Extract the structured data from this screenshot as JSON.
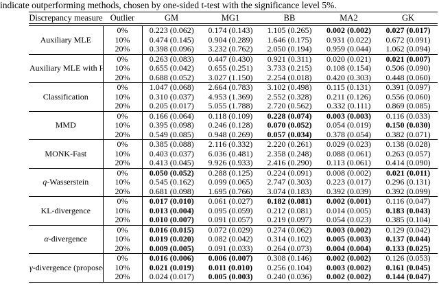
{
  "caption": "indicate outperforming methods, chosen by one-sided t-test with the significance level 5%.",
  "table": {
    "columns": [
      "Discrepancy measure",
      "Outlier",
      "GM",
      "MG1",
      "BB",
      "MA2",
      "GK"
    ],
    "groups": [
      {
        "measure_math": "",
        "measure_rest": "Auxiliary MLE",
        "rows": [
          {
            "outlier": "0%",
            "cells": [
              {
                "v": "0.223 (0.062)",
                "b": false
              },
              {
                "v": "0.174 (0.143)",
                "b": false
              },
              {
                "v": "1.105 (0.265)",
                "b": false
              },
              {
                "v": "0.002 (0.002)",
                "b": true
              },
              {
                "v": "0.027 (0.017)",
                "b": true
              }
            ]
          },
          {
            "outlier": "10%",
            "cells": [
              {
                "v": "0.474 (0.145)",
                "b": false
              },
              {
                "v": "0.904 (0.289)",
                "b": false
              },
              {
                "v": "1.646 (0.175)",
                "b": false
              },
              {
                "v": "0.931 (0.022)",
                "b": false
              },
              {
                "v": "0.672 (0.091)",
                "b": false
              }
            ]
          },
          {
            "outlier": "20%",
            "cells": [
              {
                "v": "0.398 (0.096)",
                "b": false
              },
              {
                "v": "3.232 (0.762)",
                "b": false
              },
              {
                "v": "2.050 (0.194)",
                "b": false
              },
              {
                "v": "0.959 (0.044)",
                "b": false
              },
              {
                "v": "1.062 (0.094)",
                "b": false
              }
            ]
          }
        ]
      },
      {
        "measure_math": "",
        "measure_rest": "Auxiliary MLE with Huber",
        "rows": [
          {
            "outlier": "0%",
            "cells": [
              {
                "v": "0.263 (0.083)",
                "b": false
              },
              {
                "v": "0.447 (0.430)",
                "b": false
              },
              {
                "v": "0.921 (0.311)",
                "b": false
              },
              {
                "v": "0.020 (0.021)",
                "b": false
              },
              {
                "v": "0.021 (0.007)",
                "b": true
              }
            ]
          },
          {
            "outlier": "10%",
            "cells": [
              {
                "v": "0.655 (0.042)",
                "b": false
              },
              {
                "v": "0.655 (0.251)",
                "b": false
              },
              {
                "v": "3.733 (0.215)",
                "b": false
              },
              {
                "v": "0.108 (0.154)",
                "b": false
              },
              {
                "v": "0.506 (0.090)",
                "b": false
              }
            ]
          },
          {
            "outlier": "20%",
            "cells": [
              {
                "v": "0.688 (0.052)",
                "b": false
              },
              {
                "v": "3.027 (1.150)",
                "b": false
              },
              {
                "v": "2.254 (0.018)",
                "b": false
              },
              {
                "v": "0.420 (0.303)",
                "b": false
              },
              {
                "v": "0.448 (0.060)",
                "b": false
              }
            ]
          }
        ]
      },
      {
        "measure_math": "",
        "measure_rest": "Classification",
        "rows": [
          {
            "outlier": "0%",
            "cells": [
              {
                "v": "1.047 (0.068)",
                "b": false
              },
              {
                "v": "2.664 (0.783)",
                "b": false
              },
              {
                "v": "3.102 (0.498)",
                "b": false
              },
              {
                "v": "0.115 (0.131)",
                "b": false
              },
              {
                "v": "0.391 (0.097)",
                "b": false
              }
            ]
          },
          {
            "outlier": "10%",
            "cells": [
              {
                "v": "0.310 (0.037)",
                "b": false
              },
              {
                "v": "4.953 (1.369)",
                "b": false
              },
              {
                "v": "2.552 (0.328)",
                "b": false
              },
              {
                "v": "0.211 (0.126)",
                "b": false
              },
              {
                "v": "0.556 (0.060)",
                "b": false
              }
            ]
          },
          {
            "outlier": "20%",
            "cells": [
              {
                "v": "0.205 (0.017)",
                "b": false
              },
              {
                "v": "5.055 (1.788)",
                "b": false
              },
              {
                "v": "2.720 (0.562)",
                "b": false
              },
              {
                "v": "0.332 (0.111)",
                "b": false
              },
              {
                "v": "0.869 (0.085)",
                "b": false
              }
            ]
          }
        ]
      },
      {
        "measure_math": "",
        "measure_rest": "MMD",
        "rows": [
          {
            "outlier": "0%",
            "cells": [
              {
                "v": "0.166 (0.064)",
                "b": false
              },
              {
                "v": "0.118 (0.109)",
                "b": false
              },
              {
                "v": "0.228 (0.074)",
                "b": true
              },
              {
                "v": "0.003 (0.003)",
                "b": true
              },
              {
                "v": "0.116 (0.033)",
                "b": false
              }
            ]
          },
          {
            "outlier": "10%",
            "cells": [
              {
                "v": "0.395 (0.098)",
                "b": false
              },
              {
                "v": "0.246 (0.128)",
                "b": false
              },
              {
                "v": "0.070 (0.052)",
                "b": true
              },
              {
                "v": "0.054 (0.019)",
                "b": false
              },
              {
                "v": "0.150 (0.030)",
                "b": true
              }
            ]
          },
          {
            "outlier": "20%",
            "cells": [
              {
                "v": "0.549 (0.085)",
                "b": false
              },
              {
                "v": "0.948 (0.269)",
                "b": false
              },
              {
                "v": "0.057 (0.034)",
                "b": true
              },
              {
                "v": "0.378 (0.054)",
                "b": false
              },
              {
                "v": "0.382 (0.071)",
                "b": false
              }
            ]
          }
        ]
      },
      {
        "measure_math": "",
        "measure_rest": "MONK-Fast",
        "rows": [
          {
            "outlier": "0%",
            "cells": [
              {
                "v": "0.385 (0.088)",
                "b": false
              },
              {
                "v": "2.116 (0.332)",
                "b": false
              },
              {
                "v": "2.220 (0.261)",
                "b": false
              },
              {
                "v": "0.029 (0.023)",
                "b": false
              },
              {
                "v": "0.138 (0.028)",
                "b": false
              }
            ]
          },
          {
            "outlier": "10%",
            "cells": [
              {
                "v": "0.403 (0.037)",
                "b": false
              },
              {
                "v": "6.036 (0.481)",
                "b": false
              },
              {
                "v": "2.358 (0.248)",
                "b": false
              },
              {
                "v": "0.088 (0.061)",
                "b": false
              },
              {
                "v": "0.263 (0.057)",
                "b": false
              }
            ]
          },
          {
            "outlier": "20%",
            "cells": [
              {
                "v": "0.413 (0.045)",
                "b": false
              },
              {
                "v": "9.926 (0.933)",
                "b": false
              },
              {
                "v": "2.416 (0.290)",
                "b": false
              },
              {
                "v": "0.113 (0.061)",
                "b": false
              },
              {
                "v": "0.414 (0.090)",
                "b": false
              }
            ]
          }
        ]
      },
      {
        "measure_math": "q",
        "measure_rest": "-Wasserstein",
        "rows": [
          {
            "outlier": "0%",
            "cells": [
              {
                "v": "0.050 (0.052)",
                "b": true
              },
              {
                "v": "0.288 (0.125)",
                "b": false
              },
              {
                "v": "0.224 (0.091)",
                "b": false
              },
              {
                "v": "0.008 (0.002)",
                "b": false
              },
              {
                "v": "0.021 (0.011)",
                "b": true
              }
            ]
          },
          {
            "outlier": "10%",
            "cells": [
              {
                "v": "0.545 (0.162)",
                "b": false
              },
              {
                "v": "0.099 (0.065)",
                "b": false
              },
              {
                "v": "2.747 (0.303)",
                "b": false
              },
              {
                "v": "0.223 (0.017)",
                "b": false
              },
              {
                "v": "0.296 (0.131)",
                "b": false
              }
            ]
          },
          {
            "outlier": "20%",
            "cells": [
              {
                "v": "0.681 (0.098)",
                "b": false
              },
              {
                "v": "1.695 (0.766)",
                "b": false
              },
              {
                "v": "3.074 (0.183)",
                "b": false
              },
              {
                "v": "0.392 (0.039)",
                "b": false
              },
              {
                "v": "0.392 (0.099)",
                "b": false
              }
            ]
          }
        ]
      },
      {
        "measure_math": "",
        "measure_rest": "KL-divergence",
        "rows": [
          {
            "outlier": "0%",
            "cells": [
              {
                "v": "0.017 (0.010)",
                "b": true
              },
              {
                "v": "0.061 (0.027)",
                "b": false
              },
              {
                "v": "0.182 (0.081)",
                "b": true
              },
              {
                "v": "0.002 (0.001)",
                "b": true
              },
              {
                "v": "0.116 (0.047)",
                "b": false
              }
            ]
          },
          {
            "outlier": "10%",
            "cells": [
              {
                "v": "0.013 (0.004)",
                "b": true
              },
              {
                "v": "0.095 (0.059)",
                "b": false
              },
              {
                "v": "0.212 (0.081)",
                "b": false
              },
              {
                "v": "0.014 (0.005)",
                "b": false
              },
              {
                "v": "0.183 (0.043)",
                "b": true
              }
            ]
          },
          {
            "outlier": "20%",
            "cells": [
              {
                "v": "0.010 (0.007)",
                "b": true
              },
              {
                "v": "0.091 (0.057)",
                "b": false
              },
              {
                "v": "0.219 (0.097)",
                "b": false
              },
              {
                "v": "0.054 (0.023)",
                "b": false
              },
              {
                "v": "0.385 (0.104)",
                "b": false
              }
            ]
          }
        ]
      },
      {
        "measure_math": "α",
        "measure_rest": "-divergence",
        "rows": [
          {
            "outlier": "0%",
            "cells": [
              {
                "v": "0.016 (0.015)",
                "b": true
              },
              {
                "v": "0.072 (0.029)",
                "b": false
              },
              {
                "v": "0.274 (0.062)",
                "b": false
              },
              {
                "v": "0.003 (0.002)",
                "b": true
              },
              {
                "v": "0.129 (0.042)",
                "b": false
              }
            ]
          },
          {
            "outlier": "10%",
            "cells": [
              {
                "v": "0.019 (0.020)",
                "b": true
              },
              {
                "v": "0.082 (0.042)",
                "b": false
              },
              {
                "v": "0.314 (0.102)",
                "b": false
              },
              {
                "v": "0.005 (0.003)",
                "b": true
              },
              {
                "v": "0.137 (0.044)",
                "b": true
              }
            ]
          },
          {
            "outlier": "20%",
            "cells": [
              {
                "v": "0.009 (0.005)",
                "b": true
              },
              {
                "v": "0.091 (0.033)",
                "b": false
              },
              {
                "v": "0.264 (0.073)",
                "b": false
              },
              {
                "v": "0.004 (0.004)",
                "b": true
              },
              {
                "v": "0.133 (0.025)",
                "b": true
              }
            ]
          }
        ]
      },
      {
        "measure_math": "γ",
        "measure_rest": "-divergence (proposed)",
        "rows": [
          {
            "outlier": "0%",
            "cells": [
              {
                "v": "0.016 (0.006)",
                "b": true
              },
              {
                "v": "0.006 (0.007)",
                "b": true
              },
              {
                "v": "0.308 (0.146)",
                "b": false
              },
              {
                "v": "0.002 (0.002)",
                "b": true
              },
              {
                "v": "0.126 (0.053)",
                "b": false
              }
            ]
          },
          {
            "outlier": "10%",
            "cells": [
              {
                "v": "0.021 (0.019)",
                "b": true
              },
              {
                "v": "0.011 (0.010)",
                "b": true
              },
              {
                "v": "0.256 (0.104)",
                "b": false
              },
              {
                "v": "0.003 (0.002)",
                "b": true
              },
              {
                "v": "0.161 (0.045)",
                "b": true
              }
            ]
          },
          {
            "outlier": "20%",
            "cells": [
              {
                "v": "0.024 (0.017)",
                "b": false
              },
              {
                "v": "0.005 (0.003)",
                "b": true
              },
              {
                "v": "0.240 (0.036)",
                "b": false
              },
              {
                "v": "0.002 (0.002)",
                "b": true
              },
              {
                "v": "0.144 (0.047)",
                "b": true
              }
            ]
          }
        ]
      }
    ]
  }
}
